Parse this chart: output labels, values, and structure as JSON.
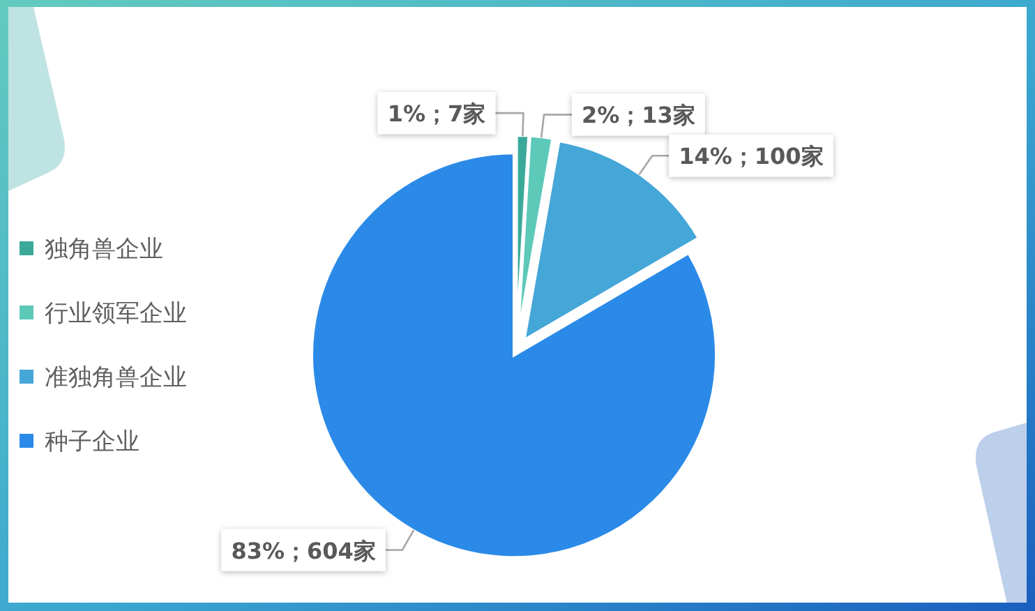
{
  "chart_data": {
    "type": "pie",
    "categories": [
      "独角兽企业",
      "行业领军企业",
      "准独角兽企业",
      "种子企业"
    ],
    "values": [
      7,
      13,
      100,
      604
    ],
    "colors": [
      "#3ba99a",
      "#5cc9b9",
      "#45a6d8",
      "#2b8ae8"
    ],
    "value_labels": [
      "1%；7家",
      "2%；13家",
      "14%；100家",
      "83%；604家"
    ],
    "legend": "left"
  }
}
